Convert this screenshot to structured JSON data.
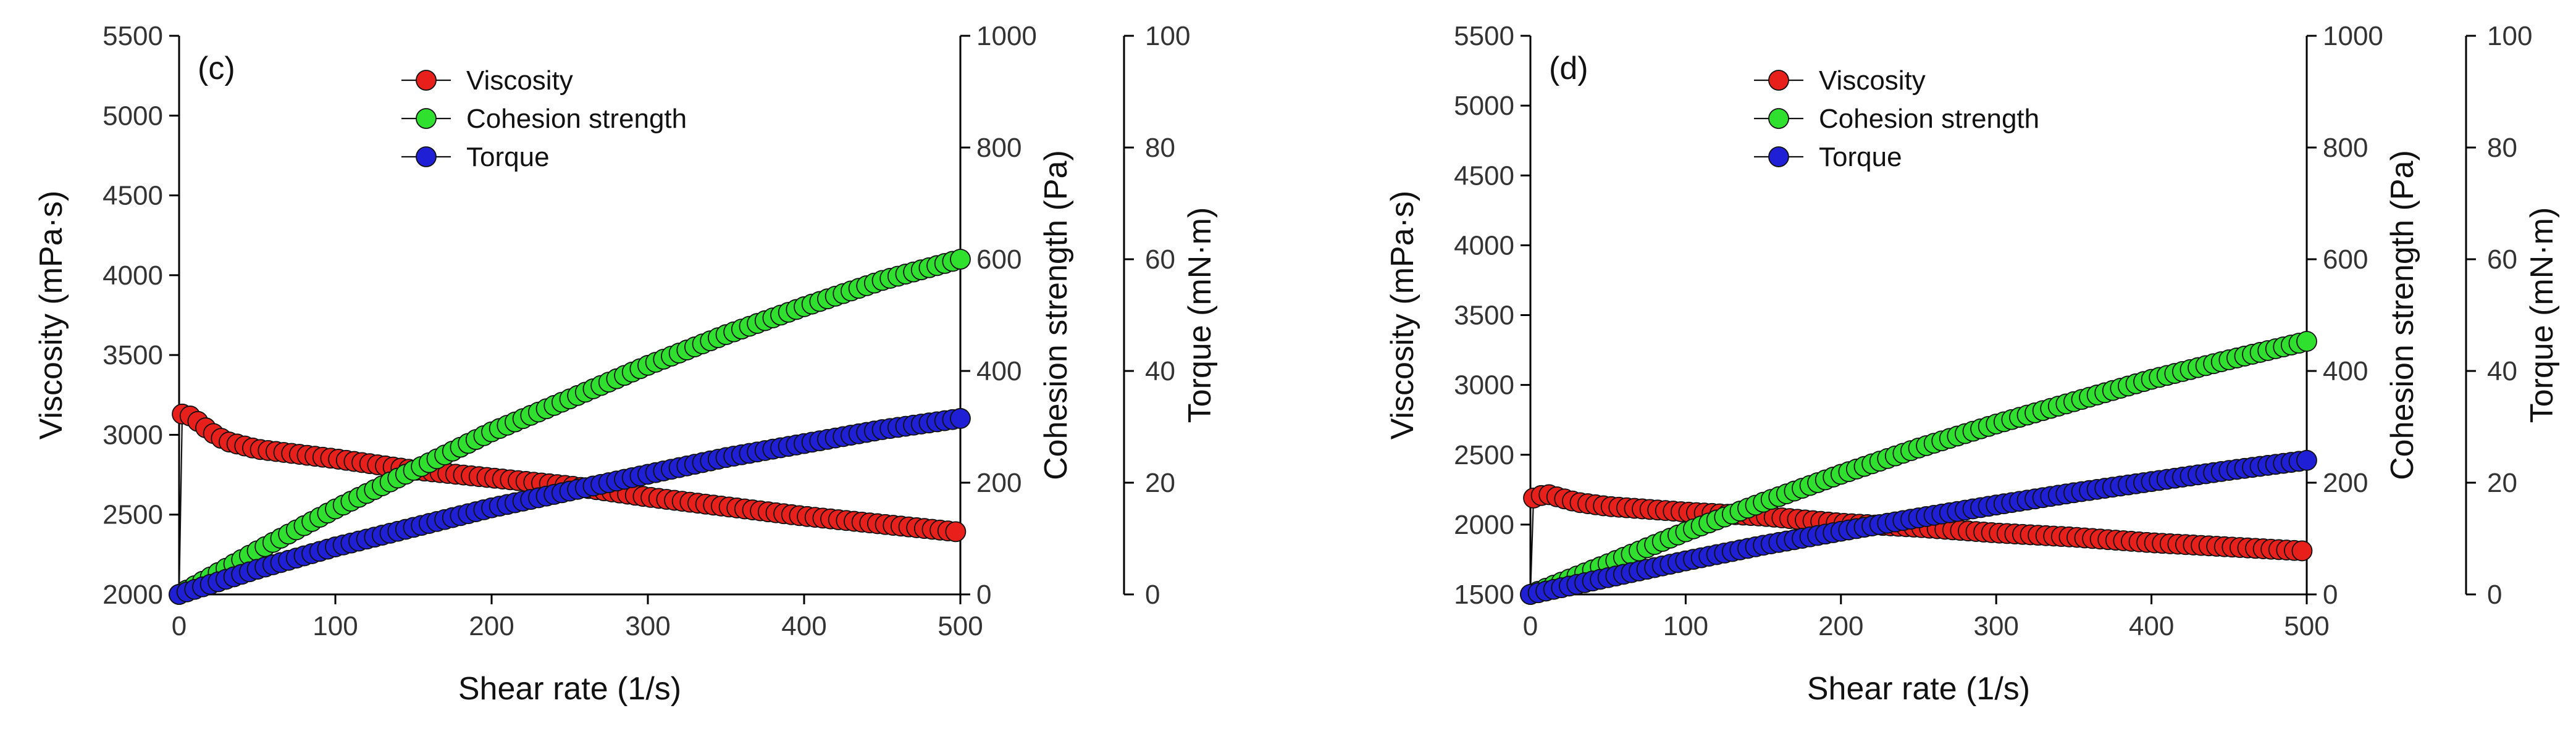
{
  "chart_data": [
    {
      "type": "scatter",
      "panel_label": "(c)",
      "xlabel": "Shear rate (1/s)",
      "xlim": [
        0,
        500
      ],
      "xticks": [
        0,
        100,
        200,
        300,
        400,
        500
      ],
      "y_axes": {
        "viscosity": {
          "label": "Viscosity (mPa·s)",
          "lim": [
            2000,
            5500
          ],
          "ticks": [
            2000,
            2500,
            3000,
            3500,
            4000,
            4500,
            5000,
            5500
          ]
        },
        "cohesion": {
          "label": "Cohesion strength (Pa)",
          "lim": [
            0,
            1000
          ],
          "ticks": [
            0,
            200,
            400,
            600,
            800,
            1000
          ]
        },
        "torque": {
          "label": "Torque (mN·m)",
          "lim": [
            0,
            100
          ],
          "ticks": [
            0,
            20,
            40,
            60,
            80,
            100
          ]
        }
      },
      "legend": {
        "placement": "top-center"
      },
      "series": [
        {
          "name": "Viscosity",
          "axis": "viscosity",
          "color": "#e8201c",
          "x": [
            0,
            2,
            5,
            10,
            20,
            30,
            50,
            75,
            100,
            150,
            200,
            250,
            300,
            350,
            400,
            450,
            500
          ],
          "y": [
            2000,
            3130,
            3130,
            3100,
            3020,
            2960,
            2910,
            2880,
            2850,
            2780,
            2730,
            2680,
            2610,
            2550,
            2490,
            2440,
            2390
          ]
        },
        {
          "name": "Cohesion strength",
          "axis": "cohesion",
          "color": "#2fe02f",
          "x": [
            0,
            50,
            100,
            150,
            200,
            250,
            300,
            350,
            400,
            450,
            500
          ],
          "y": [
            0,
            78,
            153,
            222,
            291,
            350,
            410,
            465,
            515,
            562,
            600
          ]
        },
        {
          "name": "Torque",
          "axis": "torque",
          "color": "#1f1fd6",
          "x": [
            0,
            50,
            100,
            150,
            200,
            250,
            300,
            350,
            400,
            450,
            500
          ],
          "y": [
            0,
            4.5,
            8.5,
            12.0,
            15.5,
            18.5,
            21.5,
            24.5,
            27.0,
            29.5,
            31.5
          ]
        }
      ]
    },
    {
      "type": "scatter",
      "panel_label": "(d)",
      "xlabel": "Shear rate (1/s)",
      "xlim": [
        0,
        500
      ],
      "xticks": [
        0,
        100,
        200,
        300,
        400,
        500
      ],
      "y_axes": {
        "viscosity": {
          "label": "Viscosity (mPa·s)",
          "lim": [
            1500,
            5500
          ],
          "ticks": [
            1500,
            2000,
            2500,
            3000,
            3500,
            4000,
            4500,
            5000,
            5500
          ]
        },
        "cohesion": {
          "label": "Cohesion strength (Pa)",
          "lim": [
            0,
            1000
          ],
          "ticks": [
            0,
            200,
            400,
            600,
            800,
            1000
          ]
        },
        "torque": {
          "label": "Torque (mN·m)",
          "lim": [
            0,
            100
          ],
          "ticks": [
            0,
            20,
            40,
            60,
            80,
            100
          ]
        }
      },
      "legend": {
        "placement": "top-center"
      },
      "series": [
        {
          "name": "Viscosity",
          "axis": "viscosity",
          "color": "#e8201c",
          "x": [
            0,
            2,
            5,
            10,
            20,
            30,
            50,
            75,
            100,
            150,
            200,
            250,
            300,
            350,
            400,
            450,
            500
          ],
          "y": [
            1500,
            2190,
            2200,
            2220,
            2190,
            2160,
            2130,
            2110,
            2090,
            2060,
            2010,
            1980,
            1940,
            1910,
            1870,
            1840,
            1810
          ]
        },
        {
          "name": "Cohesion strength",
          "axis": "cohesion",
          "color": "#2fe02f",
          "x": [
            0,
            50,
            100,
            150,
            200,
            250,
            300,
            350,
            400,
            450,
            500
          ],
          "y": [
            0,
            55,
            112,
            165,
            215,
            262,
            305,
            345,
            385,
            420,
            453
          ]
        },
        {
          "name": "Torque",
          "axis": "torque",
          "color": "#1f1fd6",
          "x": [
            0,
            50,
            100,
            150,
            200,
            250,
            300,
            350,
            400,
            450,
            500
          ],
          "y": [
            0,
            3.0,
            6.0,
            8.8,
            11.3,
            13.7,
            16.0,
            18.2,
            20.2,
            22.2,
            24.0
          ]
        }
      ]
    }
  ]
}
